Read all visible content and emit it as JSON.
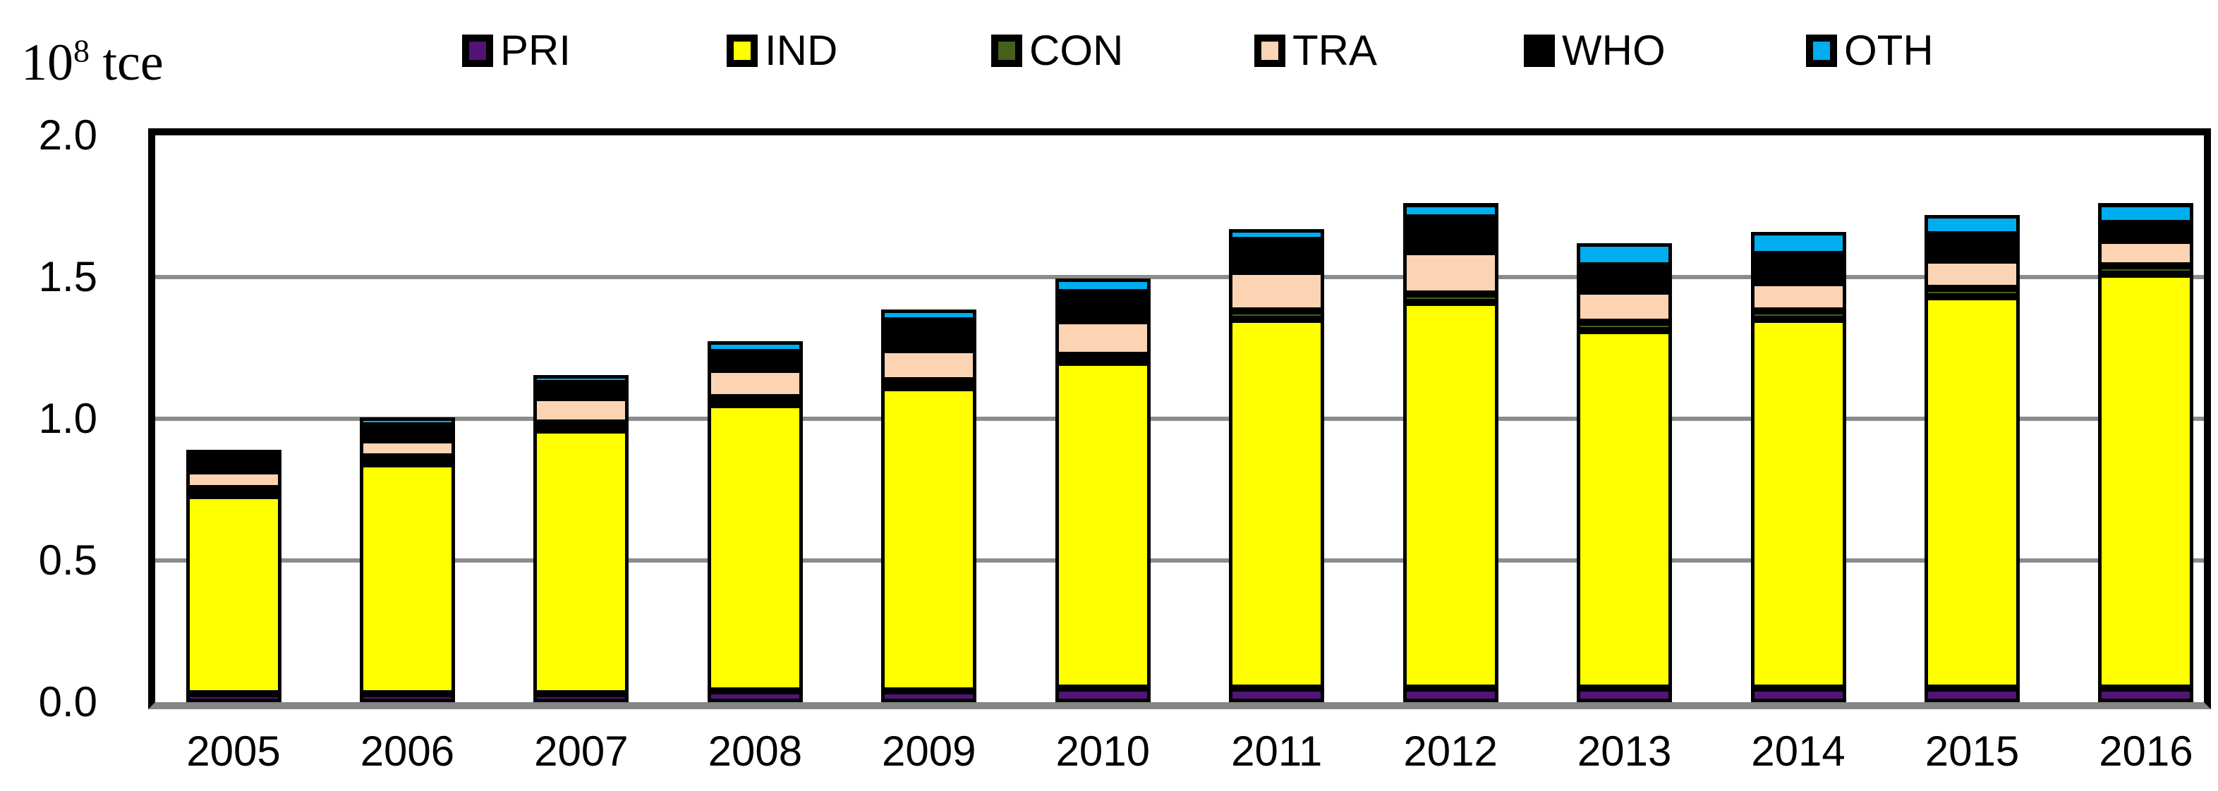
{
  "axis_unit": {
    "base": "10",
    "exponent": "8",
    "suffix": " tce"
  },
  "chart_data": {
    "type": "bar",
    "stacked": true,
    "title": "",
    "unit_label": "10^8 tce",
    "categories": [
      "2005",
      "2006",
      "2007",
      "2008",
      "2009",
      "2010",
      "2011",
      "2012",
      "2013",
      "2014",
      "2015",
      "2016"
    ],
    "series": [
      {
        "name": "PRI",
        "color": "#521477",
        "values": [
          0.03,
          0.03,
          0.03,
          0.04,
          0.04,
          0.05,
          0.05,
          0.05,
          0.05,
          0.05,
          0.05,
          0.05
        ]
      },
      {
        "name": "IND",
        "color": "#FFFF00",
        "values": [
          0.7,
          0.81,
          0.93,
          1.01,
          1.07,
          1.15,
          1.3,
          1.36,
          1.26,
          1.3,
          1.38,
          1.46
        ]
      },
      {
        "name": "CON",
        "color": "#465F1A",
        "values": [
          0.01,
          0.01,
          0.01,
          0.01,
          0.01,
          0.02,
          0.03,
          0.03,
          0.03,
          0.03,
          0.03,
          0.03
        ]
      },
      {
        "name": "TRA",
        "color": "#FCD4B4",
        "values": [
          0.06,
          0.06,
          0.09,
          0.1,
          0.11,
          0.12,
          0.14,
          0.15,
          0.11,
          0.1,
          0.1,
          0.09
        ]
      },
      {
        "name": "WHO",
        "color": "#000000",
        "values": [
          0.05,
          0.05,
          0.05,
          0.06,
          0.1,
          0.1,
          0.11,
          0.12,
          0.09,
          0.1,
          0.09,
          0.06
        ]
      },
      {
        "name": "OTH",
        "color": "#00AEEF",
        "values": [
          0.02,
          0.03,
          0.03,
          0.04,
          0.04,
          0.05,
          0.04,
          0.05,
          0.08,
          0.08,
          0.07,
          0.07
        ]
      }
    ],
    "totals": [
      0.87,
      0.99,
      1.14,
      1.26,
      1.37,
      1.49,
      1.67,
      1.76,
      1.62,
      1.66,
      1.72,
      1.76
    ],
    "ylim": [
      0,
      2.0
    ],
    "yticks": [
      0.0,
      0.5,
      1.0,
      1.5,
      2.0
    ],
    "ytick_labels": [
      "0.0",
      "0.5",
      "1.0",
      "1.5",
      "2.0"
    ],
    "grid": "horizontal gray lines at 0.5 intervals",
    "legend_position": "top"
  },
  "colors": {
    "plot_border": "#000000",
    "gridline": "#8C8C8C",
    "baseline_axis": "#858585",
    "background": "#FFFFFF",
    "text": "#000000"
  }
}
